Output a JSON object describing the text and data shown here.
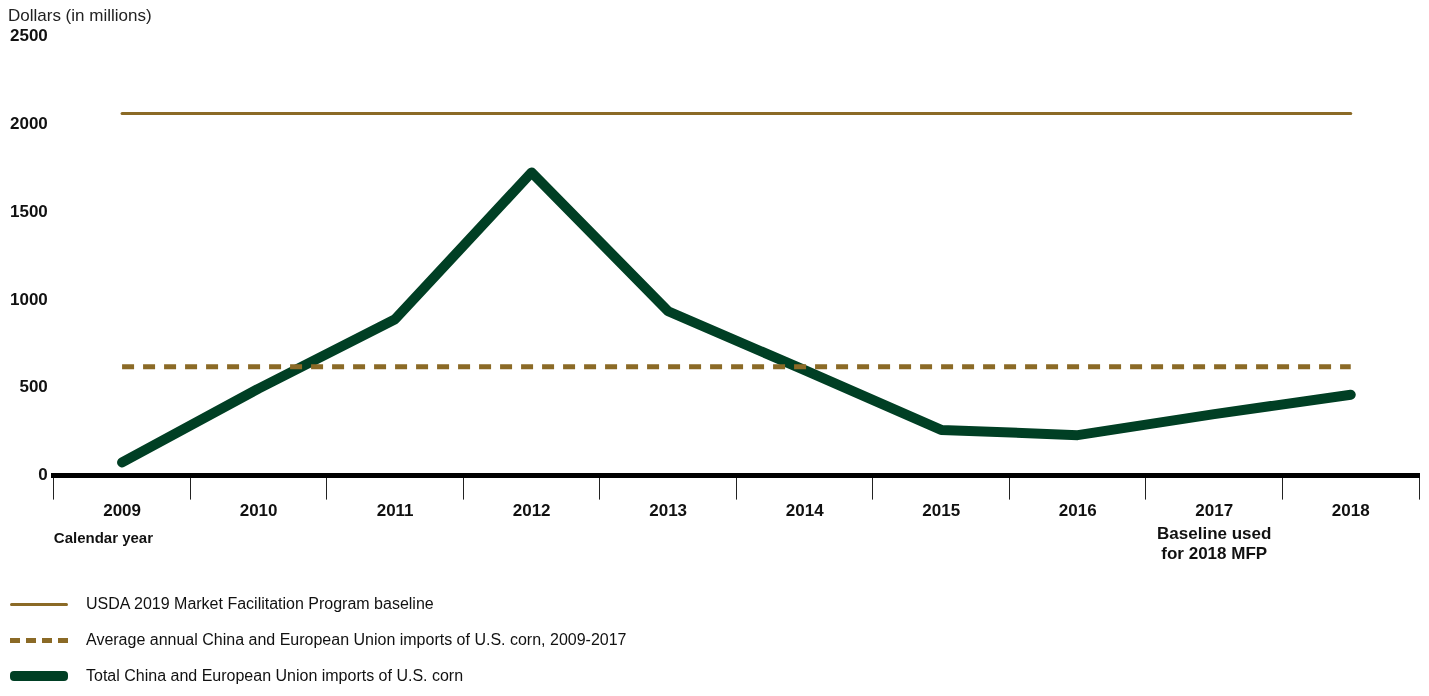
{
  "chart_data": {
    "type": "line",
    "ylabel": "Dollars (in millions)",
    "xlabel": "Calendar year",
    "categories": [
      "2009",
      "2010",
      "2011",
      "2012",
      "2013",
      "2014",
      "2015",
      "2016",
      "2017",
      "2018"
    ],
    "series": [
      {
        "name": "USDA 2019 Market Facilitation Program baseline",
        "color": "#8b6a26",
        "line_style": "solid",
        "values": [
          2060,
          2060,
          2060,
          2060,
          2060,
          2060,
          2060,
          2060,
          2060,
          2060
        ]
      },
      {
        "name": "Average annual China and European Union imports of U.S. corn, 2009-2017",
        "color": "#8b6a26",
        "line_style": "dashed",
        "values": [
          620,
          620,
          620,
          620,
          620,
          620,
          620,
          620,
          620,
          620
        ]
      },
      {
        "name": "Total China and European Union imports of U.S. corn",
        "color": "#003f24",
        "line_style": "solid",
        "values": [
          75,
          495,
          890,
          1725,
          935,
          600,
          260,
          230,
          350,
          460
        ]
      }
    ],
    "ylim": [
      0,
      2500
    ],
    "yticks": [
      0,
      500,
      1000,
      1500,
      2000,
      2500
    ],
    "annotations": [
      "Baseline used for 2018 MFP"
    ],
    "legend": "bottom",
    "marker": "none"
  }
}
